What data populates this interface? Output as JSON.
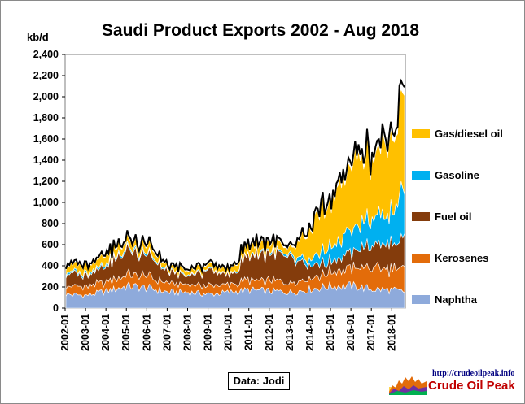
{
  "chart_data": {
    "type": "area",
    "title": "Saudi Product Exports 2002 - Aug 2018",
    "ylabel": "kb/d",
    "ylim": [
      0,
      2400
    ],
    "yticks": [
      0,
      200,
      400,
      600,
      800,
      1000,
      1200,
      1400,
      1600,
      1800,
      2000,
      2200,
      2400
    ],
    "ytick_labels": [
      "0",
      "200",
      "400",
      "600",
      "800",
      "1,000",
      "1,200",
      "1,400",
      "1,600",
      "1,800",
      "2,000",
      "2,200",
      "2,400"
    ],
    "x_start": "2002-01",
    "x_end": "2018-08",
    "xtick_labels": [
      "2002-01",
      "2003-01",
      "2004-01",
      "2005-01",
      "2006-01",
      "2007-01",
      "2008-01",
      "2009-01",
      "2010-01",
      "2011-01",
      "2012-01",
      "2013-01",
      "2014-01",
      "2015-01",
      "2016-01",
      "2017-01",
      "2018-01"
    ],
    "grid": false,
    "legend_position": "right",
    "stacked": true,
    "total_line_color": "#000000",
    "series": [
      {
        "name": "Naphtha",
        "color": "#8eaadb",
        "x": [
          "2002-01",
          "2003-01",
          "2004-01",
          "2005-01",
          "2006-01",
          "2007-01",
          "2008-01",
          "2009-01",
          "2010-01",
          "2011-01",
          "2012-01",
          "2013-01",
          "2014-01",
          "2015-01",
          "2016-01",
          "2017-01",
          "2018-01",
          "2018-08"
        ],
        "values": [
          130,
          120,
          160,
          210,
          190,
          150,
          150,
          130,
          150,
          170,
          160,
          150,
          180,
          210,
          210,
          180,
          170,
          150
        ]
      },
      {
        "name": "Kerosenes",
        "color": "#e36c0a",
        "x": [
          "2002-01",
          "2003-01",
          "2004-01",
          "2005-01",
          "2006-01",
          "2007-01",
          "2008-01",
          "2009-01",
          "2010-01",
          "2011-01",
          "2012-01",
          "2013-01",
          "2014-01",
          "2015-01",
          "2016-01",
          "2017-01",
          "2018-01",
          "2018-08"
        ],
        "values": [
          80,
          80,
          90,
          110,
          110,
          80,
          70,
          80,
          70,
          90,
          100,
          100,
          110,
          130,
          170,
          200,
          200,
          220
        ]
      },
      {
        "name": "Fuel oil",
        "color": "#843c0c",
        "x": [
          "2002-01",
          "2003-01",
          "2004-01",
          "2005-01",
          "2006-01",
          "2007-01",
          "2008-01",
          "2009-01",
          "2010-01",
          "2011-01",
          "2012-01",
          "2013-01",
          "2014-01",
          "2015-01",
          "2016-01",
          "2017-01",
          "2018-01",
          "2018-08"
        ],
        "values": [
          120,
          110,
          160,
          230,
          210,
          100,
          80,
          150,
          80,
          240,
          260,
          230,
          110,
          100,
          150,
          220,
          230,
          280
        ]
      },
      {
        "name": "Gasoline",
        "color": "#00b0f0",
        "x": [
          "2002-01",
          "2003-01",
          "2004-01",
          "2005-01",
          "2006-01",
          "2007-01",
          "2008-01",
          "2009-01",
          "2010-01",
          "2011-01",
          "2012-01",
          "2013-01",
          "2014-01",
          "2015-01",
          "2016-01",
          "2017-01",
          "2018-01",
          "2018-08"
        ],
        "values": [
          20,
          20,
          20,
          20,
          20,
          10,
          10,
          10,
          10,
          10,
          20,
          20,
          60,
          150,
          200,
          250,
          300,
          450
        ]
      },
      {
        "name": "Gas/diesel oil",
        "color": "#ffc000",
        "x": [
          "2002-01",
          "2003-01",
          "2004-01",
          "2005-01",
          "2006-01",
          "2007-01",
          "2008-01",
          "2009-01",
          "2010-01",
          "2011-01",
          "2012-01",
          "2013-01",
          "2014-01",
          "2015-01",
          "2016-01",
          "2017-01",
          "2018-01",
          "2018-08"
        ],
        "values": [
          70,
          60,
          80,
          60,
          70,
          40,
          40,
          40,
          40,
          90,
          80,
          60,
          300,
          420,
          650,
          580,
          700,
          1050
        ]
      }
    ],
    "annotations": [
      "Data: Jodi"
    ]
  },
  "footer": {
    "source": "Data: Jodi",
    "logo_url": "http://crudeoilpeak.info",
    "logo_name": "Crude Oil Peak"
  }
}
